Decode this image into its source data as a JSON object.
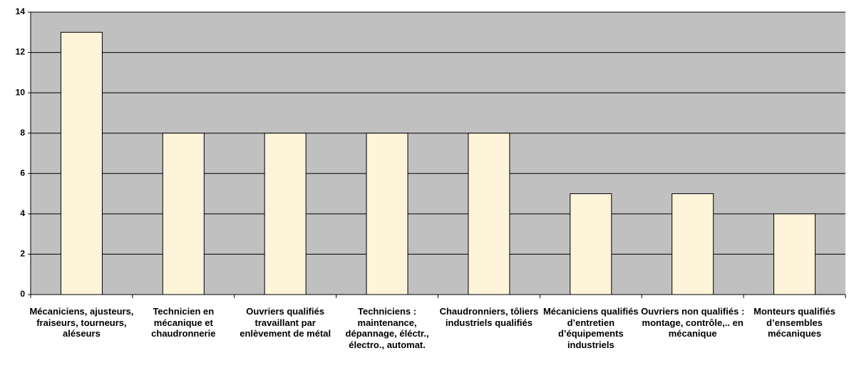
{
  "chart_data": {
    "type": "bar",
    "categories": [
      "Mécaniciens, ajusteurs, fraiseurs, tourneurs, aléseurs",
      "Technicien en mécanique et chaudronnerie",
      "Ouvriers qualifiés travaillant par enlèvement de métal",
      "Techniciens : maintenance, dépannage, éléctr., électro., automat.",
      "Chaudronniers, tôliers industriels qualifiés",
      "Mécaniciens qualifiés d’entretien d’équipements industriels",
      "Ouvriers non qualifiés : montage, contrôle,.. en mécanique",
      "Monteurs qualifiés d’ensembles mécaniques"
    ],
    "values": [
      13,
      8,
      8,
      8,
      8,
      5,
      5,
      4
    ],
    "color": "#fdf4da",
    "background": "#c0c0c0",
    "ylim": [
      0,
      14
    ],
    "yticks": [
      0,
      2,
      4,
      6,
      8,
      10,
      12,
      14
    ],
    "grid": true
  }
}
